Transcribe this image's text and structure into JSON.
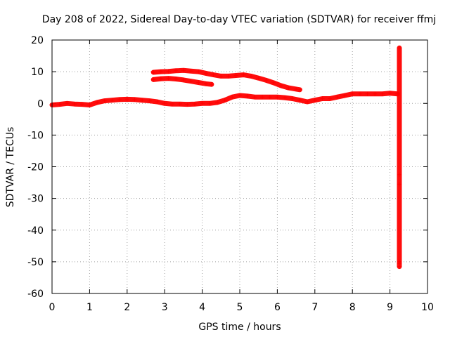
{
  "chart_data": {
    "type": "scatter",
    "title": "Day 208 of 2022, Sidereal Day-to-day VTEC variation (SDTVAR) for receiver ffmj",
    "xlabel": "GPS time / hours",
    "ylabel": "SDTVAR / TECUs",
    "xlim": [
      0,
      10
    ],
    "ylim": [
      -60,
      20
    ],
    "xticks": [
      0,
      1,
      2,
      3,
      4,
      5,
      6,
      7,
      8,
      9,
      10
    ],
    "yticks": [
      -60,
      -50,
      -40,
      -30,
      -20,
      -10,
      0,
      10,
      20
    ],
    "grid": true,
    "marker": "+",
    "color": "#ff0000",
    "series": [
      {
        "x": [
          0.0,
          0.2,
          0.4,
          0.6,
          0.8,
          1.0,
          1.2,
          1.4,
          1.6,
          1.8,
          2.0,
          2.2,
          2.4,
          2.6,
          2.8,
          3.0,
          3.2,
          3.4,
          3.6,
          3.8,
          4.0,
          4.2,
          4.4,
          4.6,
          4.8,
          5.0,
          5.2,
          5.4,
          5.6,
          5.8,
          6.0,
          6.2,
          6.4,
          6.6,
          6.8,
          7.0,
          7.2,
          7.4,
          7.6,
          7.8,
          8.0,
          8.2,
          8.4,
          8.6,
          8.8,
          9.0,
          9.2
        ],
        "y": [
          -0.5,
          -0.3,
          0.0,
          -0.2,
          -0.3,
          -0.5,
          0.3,
          0.8,
          1.0,
          1.2,
          1.3,
          1.2,
          1.0,
          0.8,
          0.5,
          0.0,
          -0.2,
          -0.2,
          -0.3,
          -0.2,
          0.0,
          0.0,
          0.3,
          1.0,
          2.0,
          2.5,
          2.3,
          2.0,
          2.0,
          2.0,
          2.0,
          1.8,
          1.5,
          1.0,
          0.5,
          1.0,
          1.5,
          1.5,
          2.0,
          2.5,
          3.0,
          3.0,
          3.0,
          3.0,
          3.0,
          3.2,
          3.0
        ]
      },
      {
        "x": [
          2.7,
          2.9,
          3.1,
          3.3,
          3.5,
          3.7,
          3.9,
          4.1,
          4.3,
          4.5,
          4.7,
          4.9,
          5.1,
          5.3,
          5.5,
          5.7,
          5.9,
          6.1,
          6.3,
          6.5,
          6.6
        ],
        "y": [
          9.8,
          10.0,
          10.1,
          10.3,
          10.4,
          10.2,
          10.0,
          9.5,
          9.0,
          8.6,
          8.6,
          8.8,
          9.0,
          8.6,
          8.0,
          7.3,
          6.5,
          5.6,
          4.9,
          4.5,
          4.3
        ]
      },
      {
        "x": [
          2.7,
          2.9,
          3.1,
          3.3,
          3.5,
          3.7,
          3.9,
          4.1,
          4.25
        ],
        "y": [
          7.5,
          7.8,
          7.9,
          7.7,
          7.4,
          7.0,
          6.6,
          6.2,
          6.0
        ]
      },
      {
        "x": [
          9.25,
          9.25,
          9.25,
          9.25,
          9.25,
          9.25
        ],
        "y": [
          17.5,
          -22.5,
          -25.5,
          -50.0,
          -50.5,
          -51.5
        ]
      }
    ]
  }
}
